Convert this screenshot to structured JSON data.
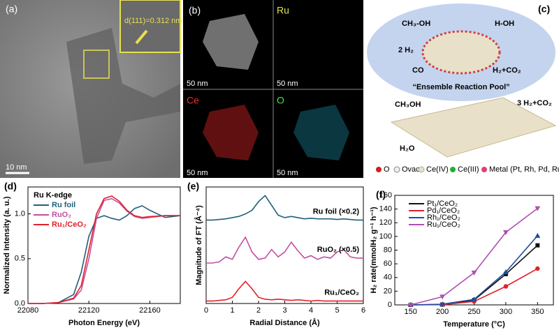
{
  "images": {
    "a": {
      "label": "(a)",
      "scale": "10 nm",
      "inset": "d(111)=0.312 nm"
    },
    "b": {
      "label": "(b)",
      "maps": [
        "Ru",
        "Ce",
        "O"
      ],
      "scale": "50 nm"
    },
    "c": {
      "label": "(c)",
      "top": [
        "CH₃-OH",
        "H-OH",
        "2 H₂",
        "CO",
        "H₂+CO₂"
      ],
      "pool": "“Ensemble Reaction Pool”",
      "bottom": [
        "CH₃OH",
        "3 H₂+CO₂",
        "H₂O"
      ],
      "legend": [
        "O",
        "Ovac",
        "Ce(IV)",
        "Ce(III)",
        "Metal (Pt, Rh, Pd, Ru)"
      ]
    }
  },
  "chart_data": [
    {
      "type": "line",
      "panel_label": "(d)",
      "xlabel": "Photon Energy (eV)",
      "ylabel": "Normalized Intensity (a. u.)",
      "legend_title": "Ru K-edge",
      "legend": "upper left",
      "x": [
        22080,
        22090,
        22100,
        22110,
        22115,
        22120,
        22125,
        22130,
        22135,
        22140,
        22145,
        22150,
        22155,
        22160,
        22170,
        22180
      ],
      "series": [
        {
          "name": "Ru foil",
          "color": "#1f5f7a",
          "values": [
            0,
            0,
            0.01,
            0.1,
            0.35,
            0.75,
            0.95,
            0.98,
            0.95,
            0.93,
            0.98,
            1.06,
            1.09,
            1.04,
            0.96,
            0.98
          ]
        },
        {
          "name": "RuO₂",
          "color": "#c050a0",
          "values": [
            0,
            0,
            0.01,
            0.05,
            0.15,
            0.5,
            0.95,
            1.15,
            1.17,
            1.12,
            1.03,
            0.97,
            0.95,
            0.96,
            0.98,
            0.98
          ]
        },
        {
          "name": "Ru₁/CeO₂",
          "color": "#e0202a",
          "values": [
            0,
            0,
            0.01,
            0.06,
            0.2,
            0.6,
            1.0,
            1.17,
            1.2,
            1.14,
            1.04,
            0.98,
            0.96,
            0.97,
            0.98,
            0.98
          ]
        }
      ],
      "xlim": [
        22080,
        22180
      ],
      "xticks": [
        22080,
        22120,
        22160
      ],
      "ylim": [
        0,
        1.3
      ],
      "yticks": [
        {
          "value": 0,
          "label": "0.0"
        },
        0.5,
        {
          "value": 1,
          "label": "1.0"
        }
      ]
    },
    {
      "type": "line",
      "panel_label": "(e)",
      "xlabel": "Radial Distance (Å)",
      "ylabel": "Magnitude of FT (Å⁻⁴)",
      "legend": "inline",
      "x": [
        0,
        0.25,
        0.5,
        0.75,
        1,
        1.25,
        1.5,
        1.75,
        2,
        2.25,
        2.5,
        2.75,
        3,
        3.25,
        3.5,
        3.75,
        4,
        4.25,
        4.5,
        4.75,
        5,
        5.25,
        5.5,
        5.75,
        6
      ],
      "series": [
        {
          "name": "Ru foil (×0.2)",
          "color": "#1f5f7a",
          "values": [
            6.8,
            6.8,
            6.85,
            6.9,
            7.0,
            7.1,
            7.3,
            7.6,
            8.3,
            8.8,
            8.0,
            7.2,
            7.0,
            7.1,
            7.0,
            6.9,
            6.95,
            6.9,
            6.9,
            6.9,
            6.85,
            6.9,
            6.85,
            6.8,
            6.8
          ]
        },
        {
          "name": "RuO₂ (×0.5)",
          "color": "#c050a0",
          "values": [
            3.3,
            3.3,
            3.4,
            3.8,
            3.6,
            4.6,
            5.4,
            4.2,
            3.6,
            3.7,
            4.4,
            3.8,
            4.2,
            5.0,
            4.3,
            3.7,
            3.9,
            3.6,
            3.8,
            3.7,
            4.2,
            4.4,
            3.8,
            3.7,
            3.7
          ]
        },
        {
          "name": "Ru₁/CeO₂",
          "color": "#e0202a",
          "values": [
            0.2,
            0.2,
            0.25,
            0.3,
            0.5,
            1.2,
            1.8,
            1.2,
            0.5,
            0.35,
            0.3,
            0.35,
            0.3,
            0.25,
            0.3,
            0.25,
            0.2,
            0.25,
            0.2,
            0.2,
            0.2,
            0.2,
            0.2,
            0.2,
            0.2
          ]
        }
      ],
      "xlim": [
        0,
        6
      ],
      "xticks": [
        0,
        1,
        2,
        3,
        4,
        5,
        6
      ],
      "ylim": [
        0,
        9.5
      ]
    },
    {
      "type": "line",
      "panel_label": "(f)",
      "xlabel": "Temperature (°C)",
      "ylabel": "H₂ rate(mmolH₂ g⁻¹ h⁻¹)",
      "legend": "upper left",
      "x": [
        150,
        200,
        250,
        300,
        350
      ],
      "series": [
        {
          "name": "Pt₁/CeO₂",
          "color": "#111111",
          "marker": "square",
          "values": [
            0,
            0.5,
            7,
            45,
            87
          ]
        },
        {
          "name": "Pd₁/CeO₂",
          "color": "#e0202a",
          "marker": "circle",
          "values": [
            0,
            0.3,
            5,
            27,
            53
          ]
        },
        {
          "name": "Rh₁/CeO₂",
          "color": "#1f4fa0",
          "marker": "triangle-up",
          "values": [
            0,
            1,
            8,
            48,
            101
          ]
        },
        {
          "name": "Ru₁/CeO₂",
          "color": "#b050b0",
          "marker": "triangle-down",
          "values": [
            0,
            12,
            47,
            106,
            141
          ]
        }
      ],
      "xlim": [
        125,
        375
      ],
      "xticks": [
        150,
        200,
        250,
        300,
        350
      ],
      "ylim": [
        0,
        160
      ],
      "yticks": [
        0,
        20,
        40,
        60,
        80,
        100,
        120,
        140,
        160
      ]
    }
  ]
}
